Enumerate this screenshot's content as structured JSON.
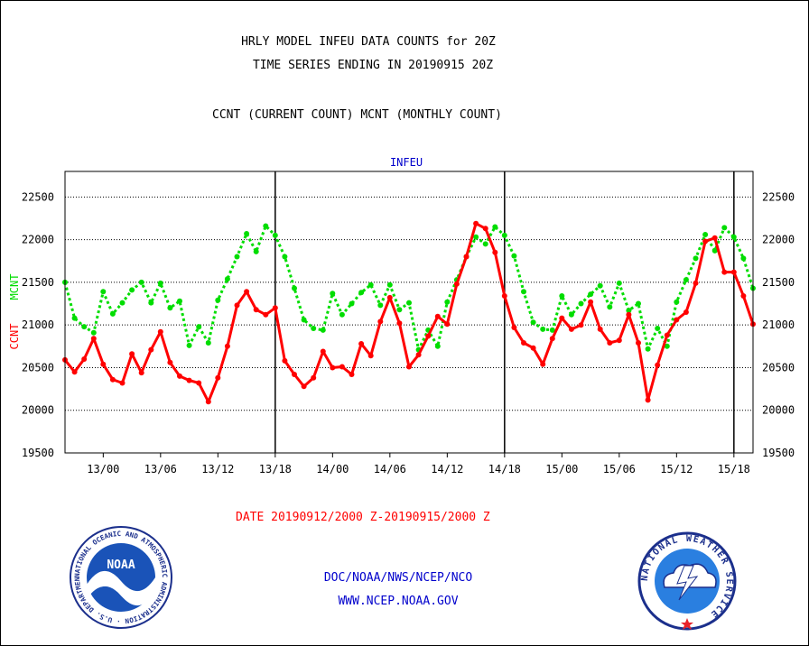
{
  "header": {
    "line1": "HRLY MODEL INFEU DATA COUNTS for 20Z",
    "line2": "TIME SERIES ENDING IN 20190915 20Z",
    "line3": "CCNT (CURRENT COUNT) MCNT (MONTHLY COUNT)"
  },
  "footer": {
    "date_range": "DATE 20190912/2000 Z-20190915/2000 Z",
    "org": "DOC/NOAA/NWS/NCEP/NCO",
    "url": "WWW.NCEP.NOAA.GOV"
  },
  "logos": {
    "noaa_text": "NOAA",
    "noaa_ring": "NATIONAL OCEANIC AND ATMOSPHERIC ADMINISTRATION · U.S. DEPARTMENT OF COMMERCE",
    "nws_ring": "NATIONAL WEATHER SERVICE"
  },
  "colors": {
    "ccnt": "#ff0000",
    "mcnt": "#00dd00",
    "title_blue": "#0000cc",
    "footer_red": "#ff0000"
  },
  "chart_data": {
    "type": "line",
    "title": "INFEU",
    "ylabel_left": "CCNT",
    "ylabel_right": "MCNT",
    "ylim": [
      19500,
      22800
    ],
    "yticks": [
      19500,
      20000,
      20500,
      21000,
      21500,
      22000,
      22500
    ],
    "y_gridlines": [
      20000,
      20500,
      21000,
      21500,
      22000,
      22500
    ],
    "grid_style": "dotted",
    "xlim": [
      "2019-09-12 20Z",
      "2019-09-15 20Z"
    ],
    "x_ticks": [
      {
        "label": "13/00",
        "hours": 4
      },
      {
        "label": "13/06",
        "hours": 10
      },
      {
        "label": "13/12",
        "hours": 16
      },
      {
        "label": "13/18",
        "hours": 22
      },
      {
        "label": "14/00",
        "hours": 28
      },
      {
        "label": "14/06",
        "hours": 34
      },
      {
        "label": "14/12",
        "hours": 40
      },
      {
        "label": "14/18",
        "hours": 46
      },
      {
        "label": "15/00",
        "hours": 52
      },
      {
        "label": "15/06",
        "hours": 58
      },
      {
        "label": "15/12",
        "hours": 64
      },
      {
        "label": "15/18",
        "hours": 70
      }
    ],
    "day_boundaries_hours": [
      22,
      46,
      70
    ],
    "series": [
      {
        "name": "CCNT",
        "color": "#ff0000",
        "style": "solid",
        "values": [
          20590,
          20450,
          20600,
          20840,
          20540,
          20360,
          20320,
          20660,
          20440,
          20710,
          20920,
          20560,
          20400,
          20350,
          20320,
          20100,
          20380,
          20750,
          21230,
          21390,
          21180,
          21120,
          21200,
          20580,
          20420,
          20280,
          20380,
          20690,
          20500,
          20510,
          20420,
          20780,
          20640,
          21040,
          21320,
          21020,
          20510,
          20650,
          20870,
          21100,
          21010,
          21480,
          21800,
          22190,
          22130,
          21850,
          21340,
          20970,
          20790,
          20730,
          20540,
          20840,
          21080,
          20950,
          21000,
          21270,
          20950,
          20790,
          20820,
          21120,
          20790,
          20120,
          20530,
          20880,
          21060,
          21150,
          21490,
          21980,
          22020,
          21620,
          21620,
          21340,
          21010
        ]
      },
      {
        "name": "MCNT",
        "color": "#00dd00",
        "style": "dotted",
        "values": [
          21500,
          21080,
          20980,
          20910,
          21390,
          21130,
          21260,
          21410,
          21500,
          21260,
          21490,
          21200,
          21280,
          20760,
          20980,
          20790,
          21290,
          21540,
          21800,
          22070,
          21860,
          22160,
          22050,
          21800,
          21430,
          21060,
          20960,
          20940,
          21370,
          21120,
          21250,
          21380,
          21470,
          21230,
          21470,
          21180,
          21260,
          20710,
          20940,
          20750,
          21270,
          21530,
          21800,
          22030,
          21950,
          22150,
          22050,
          21810,
          21390,
          21030,
          20950,
          20940,
          21340,
          21120,
          21250,
          21360,
          21460,
          21210,
          21490,
          21170,
          21250,
          20720,
          20960,
          20750,
          21270,
          21530,
          21780,
          22060,
          21870,
          22140,
          22030,
          21780,
          21430
        ]
      }
    ]
  }
}
